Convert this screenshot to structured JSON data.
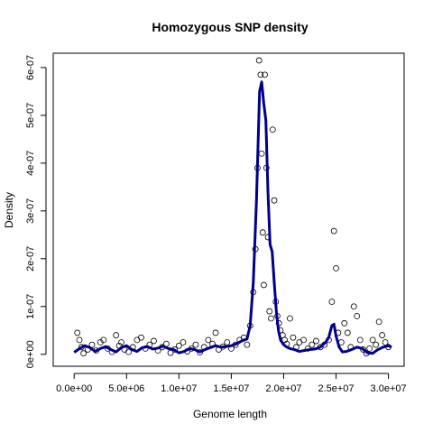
{
  "chart_data": {
    "type": "scatter",
    "title": "Homozygous SNP density",
    "xlabel": "Genome length",
    "ylabel": "Density",
    "xlim": [
      -2000000,
      31500000
    ],
    "ylim": [
      -2.5e-08,
      6.3e-07
    ],
    "x_ticks": [
      {
        "value": 0,
        "label": "0.0e+00"
      },
      {
        "value": 5000000,
        "label": "5.0e+06"
      },
      {
        "value": 10000000,
        "label": "1.0e+07"
      },
      {
        "value": 15000000,
        "label": "1.5e+07"
      },
      {
        "value": 20000000,
        "label": "2.0e+07"
      },
      {
        "value": 25000000,
        "label": "2.5e+07"
      },
      {
        "value": 30000000,
        "label": "3.0e+07"
      }
    ],
    "y_ticks": [
      {
        "value": 0,
        "label": "0e+00"
      },
      {
        "value": 1e-07,
        "label": "1e-07"
      },
      {
        "value": 2e-07,
        "label": "2e-07"
      },
      {
        "value": 3e-07,
        "label": "3e-07"
      },
      {
        "value": 4e-07,
        "label": "4e-07"
      },
      {
        "value": 5e-07,
        "label": "5e-07"
      },
      {
        "value": 6e-07,
        "label": "6e-07"
      }
    ],
    "grid": false,
    "legend": "none",
    "series": [
      {
        "kind": "points",
        "marker": "open-circle",
        "color": "#000000",
        "x": [
          300000,
          500000,
          700000,
          900000,
          1300000,
          1700000,
          2100000,
          2500000,
          2800000,
          3200000,
          3600000,
          4000000,
          4300000,
          4500000,
          4800000,
          5200000,
          5600000,
          6000000,
          6400000,
          6800000,
          7200000,
          7600000,
          8000000,
          8400000,
          8800000,
          9200000,
          9600000,
          10000000,
          10400000,
          10800000,
          11200000,
          11600000,
          12000000,
          12400000,
          12800000,
          13200000,
          13500000,
          13800000,
          14200000,
          14600000,
          15000000,
          15400000,
          15800000,
          16200000,
          16500000,
          16800000,
          17100000,
          17300000,
          17500000,
          17650000,
          17800000,
          17900000,
          18000000,
          18100000,
          18200000,
          18350000,
          18500000,
          18650000,
          18800000,
          18950000,
          19100000,
          19250000,
          19400000,
          19550000,
          19700000,
          19900000,
          20100000,
          20300000,
          20600000,
          20900000,
          21200000,
          21500000,
          21900000,
          22300000,
          22700000,
          23100000,
          23500000,
          23900000,
          24300000,
          24600000,
          24800000,
          25000000,
          25200000,
          25500000,
          25800000,
          26100000,
          26400000,
          26700000,
          27000000,
          27300000,
          27600000,
          27900000,
          28200000,
          28500000,
          28800000,
          29100000,
          29400000,
          29700000,
          30000000
        ],
        "y": [
          4.5e-08,
          3e-08,
          1.5e-08,
          2e-09,
          1e-08,
          2e-08,
          8e-09,
          2.5e-08,
          3e-08,
          1.2e-08,
          5e-09,
          4e-08,
          1.8e-08,
          2.5e-08,
          1e-08,
          5e-09,
          1.5e-08,
          3e-08,
          3.5e-08,
          1.2e-08,
          2e-08,
          2.8e-08,
          8e-09,
          1.5e-08,
          2.2e-08,
          3e-09,
          1e-08,
          1.8e-08,
          2.5e-08,
          6e-09,
          1.2e-08,
          2e-08,
          4e-09,
          1.5e-08,
          3e-08,
          2.2e-08,
          4.5e-08,
          1e-08,
          1.6e-08,
          2.5e-08,
          1.2e-08,
          2e-08,
          3e-08,
          3.5e-08,
          2e-08,
          6e-08,
          1.3e-07,
          2.2e-07,
          3.9e-07,
          6.15e-07,
          5.85e-07,
          4.2e-07,
          2.55e-07,
          1.45e-07,
          5.85e-07,
          3.9e-07,
          2.45e-07,
          9e-08,
          7.5e-08,
          4.7e-07,
          3.22e-07,
          1.1e-07,
          8e-08,
          6.5e-08,
          5e-08,
          4e-08,
          3e-08,
          2.2e-08,
          7.5e-08,
          3.5e-08,
          1.5e-08,
          2.5e-08,
          3e-08,
          1.2e-08,
          2e-08,
          2.8e-08,
          1.5e-08,
          2e-08,
          3e-08,
          1.1e-07,
          2.58e-07,
          1.8e-07,
          4.5e-08,
          2.5e-08,
          6.5e-08,
          4.5e-08,
          1.5e-08,
          1e-07,
          8e-08,
          3e-08,
          1e-08,
          2e-09,
          1.2e-08,
          3e-08,
          2e-08,
          6.8e-08,
          4e-08,
          2.5e-08,
          1.5e-08
        ]
      },
      {
        "kind": "line",
        "color": "#00008B",
        "x": [
          0,
          500000,
          1000000,
          1500000,
          2000000,
          2500000,
          3000000,
          3500000,
          4000000,
          4500000,
          5000000,
          5500000,
          6000000,
          6500000,
          7000000,
          7500000,
          8000000,
          8500000,
          9000000,
          9500000,
          10000000,
          10500000,
          11000000,
          11500000,
          12000000,
          12500000,
          13000000,
          13500000,
          14000000,
          14500000,
          15000000,
          15500000,
          16000000,
          16500000,
          16800000,
          17100000,
          17400000,
          17700000,
          17900000,
          18100000,
          18300000,
          18500000,
          18700000,
          18900000,
          19100000,
          19300000,
          19500000,
          19700000,
          20000000,
          20300000,
          20600000,
          21000000,
          21500000,
          22000000,
          22500000,
          23000000,
          23500000,
          24000000,
          24300000,
          24600000,
          24800000,
          25000000,
          25300000,
          25600000,
          26000000,
          26500000,
          27000000,
          27500000,
          28000000,
          28500000,
          29000000,
          29500000,
          30000000,
          30300000
        ],
        "y": [
          4e-09,
          1.2e-08,
          1.8e-08,
          1.4e-08,
          6e-09,
          1.2e-08,
          1.6e-08,
          1e-08,
          5e-09,
          1.4e-08,
          1.8e-08,
          1e-08,
          6e-09,
          1.4e-08,
          1.6e-08,
          1.1e-08,
          1.3e-08,
          1.7e-08,
          1.2e-08,
          1e-08,
          3e-09,
          6e-09,
          1.2e-08,
          1e-08,
          5e-09,
          1e-08,
          1.4e-08,
          1.8e-08,
          1.5e-08,
          1.6e-08,
          1.8e-08,
          2.2e-08,
          2.8e-08,
          3.2e-08,
          6e-08,
          1.5e-07,
          3.2e-07,
          5.5e-07,
          5.7e-07,
          5.25e-07,
          4.9e-07,
          3.4e-07,
          2.3e-07,
          2.15e-07,
          1.5e-07,
          9e-08,
          5e-08,
          3e-08,
          2e-08,
          1.5e-08,
          1.2e-08,
          1e-08,
          6e-09,
          8e-09,
          1e-08,
          1.1e-08,
          1.5e-08,
          2.5e-08,
          3.5e-08,
          6e-08,
          6.3e-08,
          3.8e-08,
          1.5e-08,
          5e-09,
          6e-09,
          1e-08,
          1.5e-08,
          1.2e-08,
          3e-09,
          2e-09,
          1e-08,
          1.5e-08,
          1.8e-08,
          1.5e-08
        ]
      }
    ]
  }
}
